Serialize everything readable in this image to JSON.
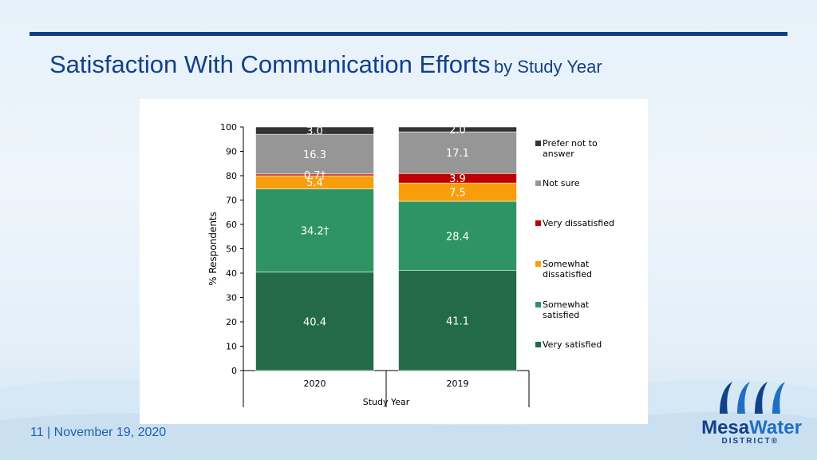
{
  "slide": {
    "title_main": "Satisfaction With Communication Efforts",
    "title_sub": "by Study Year",
    "footer": "11  | November 19, 2020"
  },
  "logo": {
    "word_part1": "Mesa",
    "word_part2": "Water",
    "sub": "DISTRICT®",
    "colors": {
      "navy": "#12408c",
      "blue": "#1f6fc6"
    }
  },
  "colors": {
    "title": "#12408c",
    "topbar": "#0f3e8a"
  },
  "chart_data": {
    "type": "bar",
    "stacked": true,
    "title": "",
    "xlabel": "Study Year",
    "ylabel": "% Respondents",
    "ylim": [
      0,
      100
    ],
    "yticks": [
      0,
      10,
      20,
      30,
      40,
      50,
      60,
      70,
      80,
      90,
      100
    ],
    "grid": false,
    "legend_position": "right",
    "categories": [
      "2020",
      "2019"
    ],
    "series": [
      {
        "name": "Very satisfied",
        "color": "#236b48",
        "values": [
          40.4,
          41.1
        ],
        "labels": [
          "40.4",
          "41.1"
        ],
        "label_color": "#ffffff"
      },
      {
        "name": "Somewhat satisfied",
        "color": "#2f9463",
        "values": [
          34.2,
          28.4
        ],
        "labels": [
          "34.2†",
          "28.4"
        ],
        "label_color": "#ffffff"
      },
      {
        "name": "Somewhat dissatisfied",
        "color": "#f99d0b",
        "values": [
          5.4,
          7.5
        ],
        "labels": [
          "5.4",
          "7.5"
        ],
        "label_color": "#ffffff"
      },
      {
        "name": "Very dissatisfied",
        "color": "#c00000",
        "values": [
          0.7,
          3.9
        ],
        "labels": [
          "0.7†",
          "3.9"
        ],
        "label_color": "#ffffff"
      },
      {
        "name": "Not sure",
        "color": "#969696",
        "values": [
          16.3,
          17.1
        ],
        "labels": [
          "16.3",
          "17.1"
        ],
        "label_color": "#ffffff"
      },
      {
        "name": "Prefer not to answer",
        "color": "#333333",
        "values": [
          3.0,
          2.0
        ],
        "labels": [
          "3.0",
          "2.0"
        ],
        "label_color": "#ffffff"
      }
    ],
    "legend": [
      {
        "lines": [
          "Prefer not to",
          "answer"
        ],
        "color": "#333333"
      },
      {
        "lines": [
          "Not sure"
        ],
        "color": "#969696"
      },
      {
        "lines": [
          "Very dissatisfied"
        ],
        "color": "#c00000"
      },
      {
        "lines": [
          "Somewhat",
          "dissatisfied"
        ],
        "color": "#f99d0b"
      },
      {
        "lines": [
          "Somewhat",
          "satisfied"
        ],
        "color": "#2f9463"
      },
      {
        "lines": [
          "Very satisfied"
        ],
        "color": "#236b48"
      }
    ]
  }
}
